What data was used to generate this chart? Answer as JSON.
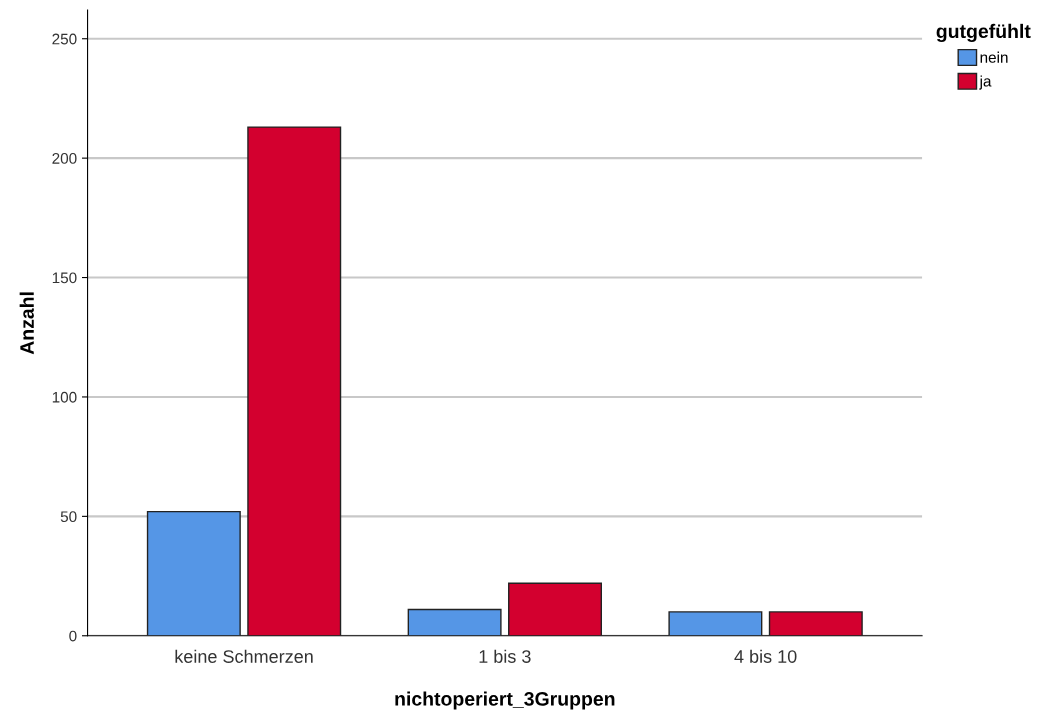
{
  "chart_data": {
    "type": "bar",
    "xlabel": "nichtoperiert_3Gruppen",
    "ylabel": "Anzahl",
    "legend_title": "gutgefühlt",
    "categories": [
      "keine Schmerzen",
      "1 bis 3",
      "4 bis 10"
    ],
    "series": [
      {
        "name": "nein",
        "color": "#5596e6",
        "values": [
          52,
          11,
          10
        ]
      },
      {
        "name": "ja",
        "color": "#d3002f",
        "values": [
          213,
          22,
          10
        ]
      }
    ],
    "ylim": [
      0,
      262
    ],
    "yticks": [
      0,
      50,
      100,
      150,
      200,
      250
    ],
    "grid": "y",
    "legend": "top right"
  }
}
